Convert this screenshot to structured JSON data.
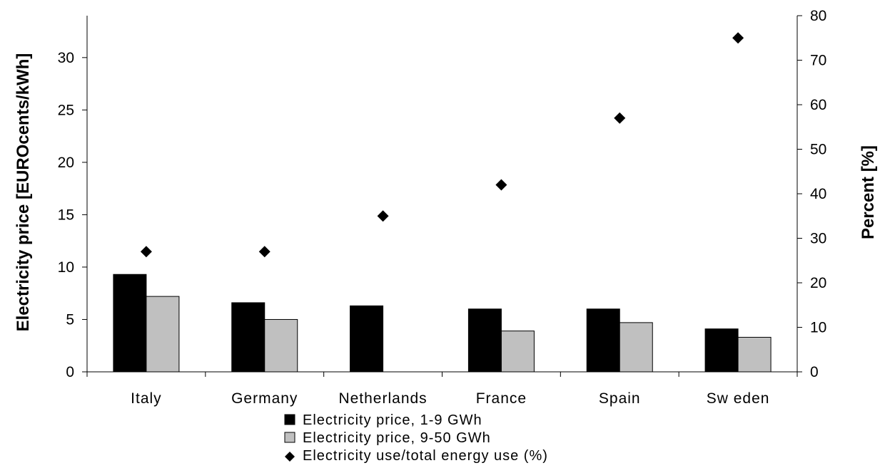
{
  "chart_data": {
    "type": "bar",
    "categories": [
      "Italy",
      "Germany",
      "Netherlands",
      "France",
      "Spain",
      "Sw eden"
    ],
    "series": [
      {
        "name": "Electricity price, 1-9 GWh",
        "axis": "left",
        "kind": "bar",
        "color": "#000000",
        "values": [
          9.3,
          6.6,
          6.3,
          6.0,
          6.0,
          4.1
        ]
      },
      {
        "name": "Electricity price, 9-50 GWh",
        "axis": "left",
        "kind": "bar",
        "color": "#c0c0c0",
        "values": [
          7.2,
          5.0,
          null,
          3.9,
          4.7,
          3.3
        ]
      },
      {
        "name": "Electricity use/total energy use (%)",
        "axis": "right",
        "kind": "marker",
        "marker": "diamond",
        "color": "#000000",
        "values": [
          27,
          27,
          35,
          42,
          57,
          75
        ]
      }
    ],
    "ylabel": "Electricity price [EUROcents/kWh]",
    "y2label": "Percent [%]",
    "ylim": [
      0,
      34
    ],
    "y2lim": [
      0,
      80
    ],
    "yticks": [
      "0",
      "5",
      "10",
      "15",
      "20",
      "25",
      "30"
    ],
    "y2ticks": [
      "0",
      "10",
      "20",
      "30",
      "40",
      "50",
      "60",
      "70",
      "80"
    ],
    "grid": false,
    "legend_position": "bottom"
  }
}
